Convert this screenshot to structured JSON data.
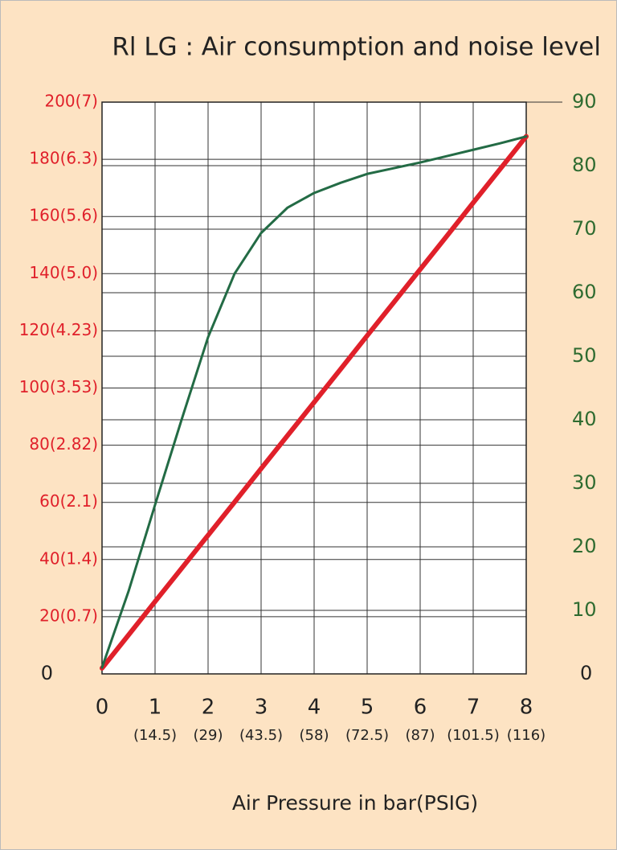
{
  "chart_data": {
    "type": "line",
    "title": "Rl LG : Air consumption and noise level",
    "x_label": "Air  Pressure in bar(PSIG)",
    "x": [
      0,
      0.5,
      1,
      1.5,
      2,
      2.5,
      3,
      3.5,
      4,
      4.5,
      5,
      5.5,
      6,
      6.5,
      7,
      7.5,
      8
    ],
    "xlim": [
      0,
      8
    ],
    "xticks": [
      0,
      1,
      2,
      3,
      4,
      5,
      6,
      7,
      8
    ],
    "xticks_psig": [
      {
        "value": 1,
        "label": "(14.5)"
      },
      {
        "value": 2,
        "label": "(29)"
      },
      {
        "value": 3,
        "label": "(43.5)"
      },
      {
        "value": 4,
        "label": "(58)"
      },
      {
        "value": 5,
        "label": "(72.5)"
      },
      {
        "value": 6,
        "label": "(87)"
      },
      {
        "value": 7,
        "label": "(101.5)"
      },
      {
        "value": 8,
        "label": "(116)"
      }
    ],
    "ylim": [
      0,
      200
    ],
    "yticks": [
      0,
      {
        "value": 20,
        "label": "20(0.7)"
      },
      {
        "value": 40,
        "label": "40(1.4)"
      },
      {
        "value": 60,
        "label": "60(2.1)"
      },
      {
        "value": 80,
        "label": "80(2.82)"
      },
      {
        "value": 100,
        "label": "100(3.53)"
      },
      {
        "value": 120,
        "label": "120(4.23)"
      },
      {
        "value": 140,
        "label": "140(5.0)"
      },
      {
        "value": 160,
        "label": "160(5.6)"
      },
      {
        "value": 180,
        "label": "180(6.3)"
      },
      {
        "value": 200,
        "label": "200(7)"
      }
    ],
    "y_color": "#e0202a",
    "y2lim": [
      0,
      90
    ],
    "y2ticks": [
      0,
      10,
      20,
      30,
      40,
      50,
      60,
      70,
      80,
      90
    ],
    "y2_color": "#2e6b30",
    "grid": true,
    "series": [
      {
        "color": "#e0202a",
        "values": [
          2,
          13.6,
          25.3,
          36.9,
          48.5,
          60.1,
          71.8,
          83.4,
          95,
          106.6,
          118.3,
          129.9,
          141.5,
          153.1,
          164.8,
          176.4,
          188
        ]
      },
      {
        "color": "#236b45",
        "axis": "y2",
        "values": [
          1,
          13,
          26.6,
          40,
          53,
          63,
          69.4,
          73.4,
          75.7,
          77.3,
          78.7,
          79.6,
          80.5,
          81.5,
          82.5,
          83.5,
          84.6
        ]
      }
    ]
  }
}
